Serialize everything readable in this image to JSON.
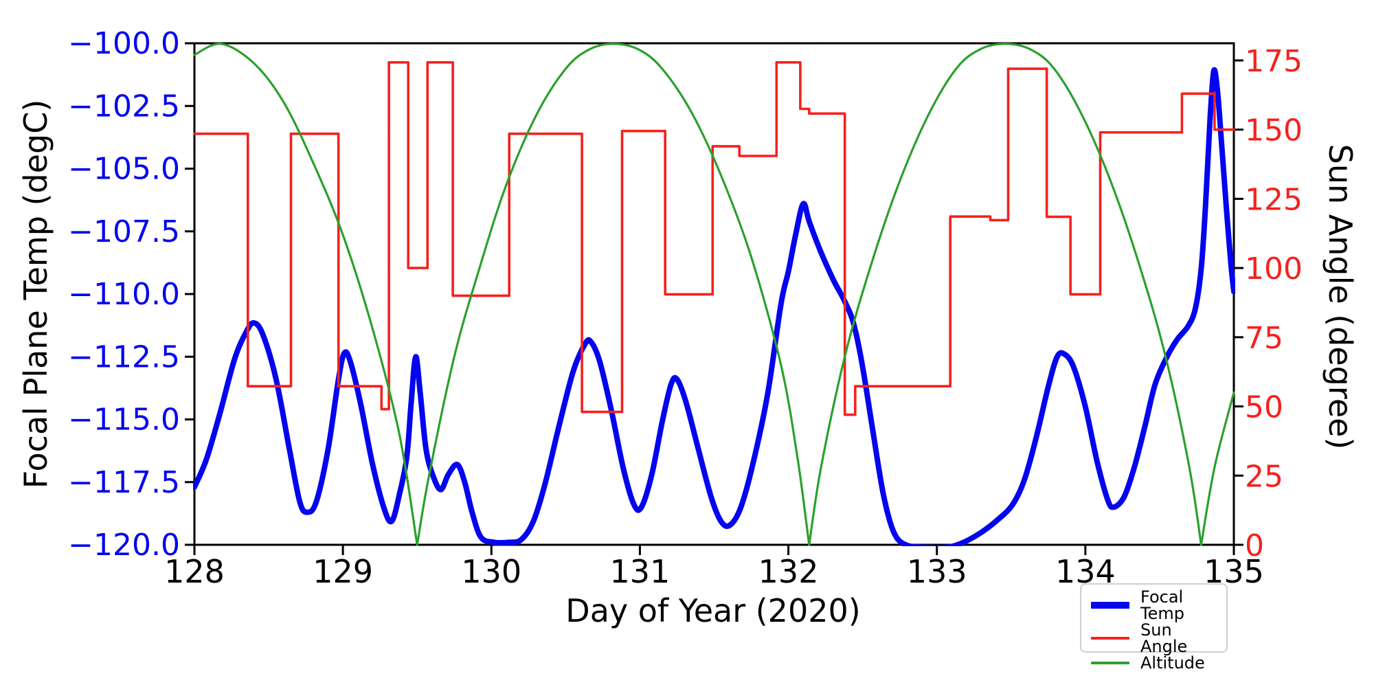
{
  "chart_data": {
    "type": "line",
    "title": "",
    "xlabel": "Day of Year (2020)",
    "ylabel_left": "Focal Plane Temp (degC)",
    "ylabel_right": "Sun Angle (degree)",
    "x_range": [
      128,
      135
    ],
    "left_axis": {
      "range": [
        -120.0,
        -100.0
      ],
      "tick_color": "#0404ee",
      "ticks": [
        {
          "v": -100.0,
          "label": "−100.0"
        },
        {
          "v": -102.5,
          "label": "−102.5"
        },
        {
          "v": -105.0,
          "label": "−105.0"
        },
        {
          "v": -107.5,
          "label": "−107.5"
        },
        {
          "v": -110.0,
          "label": "−110.0"
        },
        {
          "v": -112.5,
          "label": "−112.5"
        },
        {
          "v": -115.0,
          "label": "−115.0"
        },
        {
          "v": -117.5,
          "label": "−117.5"
        },
        {
          "v": -120.0,
          "label": "−120.0"
        }
      ]
    },
    "right_axis": {
      "range": [
        0,
        181.2
      ],
      "tick_color": "#f5211d",
      "ticks": [
        {
          "v": 175,
          "label": "175"
        },
        {
          "v": 150,
          "label": "150"
        },
        {
          "v": 125,
          "label": "125"
        },
        {
          "v": 100,
          "label": "100"
        },
        {
          "v": 75,
          "label": "75"
        },
        {
          "v": 50,
          "label": "50"
        },
        {
          "v": 25,
          "label": "25"
        },
        {
          "v": 0,
          "label": "0"
        }
      ]
    },
    "x_ticks": [
      {
        "v": 128,
        "label": "128"
      },
      {
        "v": 129,
        "label": "129"
      },
      {
        "v": 130,
        "label": "130"
      },
      {
        "v": 131,
        "label": "131"
      },
      {
        "v": 132,
        "label": "132"
      },
      {
        "v": 133,
        "label": "133"
      },
      {
        "v": 134,
        "label": "134"
      },
      {
        "v": 135,
        "label": "135"
      }
    ],
    "series": [
      {
        "name": "Focal Temp",
        "axis": "left",
        "color": "#0404ee",
        "linewidth": 8,
        "style": "smooth",
        "points": [
          [
            128.0,
            -117.7
          ],
          [
            128.08,
            -116.6
          ],
          [
            128.17,
            -114.8
          ],
          [
            128.27,
            -112.6
          ],
          [
            128.35,
            -111.5
          ],
          [
            128.4,
            -111.15
          ],
          [
            128.46,
            -111.6
          ],
          [
            128.55,
            -113.4
          ],
          [
            128.64,
            -116.2
          ],
          [
            128.71,
            -118.3
          ],
          [
            128.76,
            -118.7
          ],
          [
            128.82,
            -118.3
          ],
          [
            128.9,
            -116.2
          ],
          [
            128.97,
            -113.4
          ],
          [
            129.01,
            -112.35
          ],
          [
            129.05,
            -112.7
          ],
          [
            129.12,
            -114.4
          ],
          [
            129.2,
            -116.8
          ],
          [
            129.28,
            -118.6
          ],
          [
            129.33,
            -119.05
          ],
          [
            129.38,
            -118.0
          ],
          [
            129.43,
            -116.5
          ],
          [
            129.46,
            -114.3
          ],
          [
            129.49,
            -112.5
          ],
          [
            129.52,
            -113.9
          ],
          [
            129.56,
            -116.2
          ],
          [
            129.61,
            -117.3
          ],
          [
            129.66,
            -117.8
          ],
          [
            129.71,
            -117.2
          ],
          [
            129.77,
            -116.8
          ],
          [
            129.82,
            -117.5
          ],
          [
            129.87,
            -118.7
          ],
          [
            129.93,
            -119.7
          ],
          [
            130.02,
            -119.9
          ],
          [
            130.12,
            -119.9
          ],
          [
            130.2,
            -119.8
          ],
          [
            130.28,
            -119.1
          ],
          [
            130.36,
            -117.6
          ],
          [
            130.45,
            -115.4
          ],
          [
            130.55,
            -113.1
          ],
          [
            130.63,
            -112.0
          ],
          [
            130.67,
            -111.9
          ],
          [
            130.73,
            -112.7
          ],
          [
            130.81,
            -114.7
          ],
          [
            130.89,
            -117.0
          ],
          [
            130.96,
            -118.4
          ],
          [
            131.01,
            -118.5
          ],
          [
            131.08,
            -117.2
          ],
          [
            131.15,
            -115.1
          ],
          [
            131.21,
            -113.6
          ],
          [
            131.25,
            -113.4
          ],
          [
            131.31,
            -114.3
          ],
          [
            131.39,
            -116.1
          ],
          [
            131.48,
            -118.1
          ],
          [
            131.55,
            -119.1
          ],
          [
            131.61,
            -119.2
          ],
          [
            131.68,
            -118.5
          ],
          [
            131.76,
            -116.8
          ],
          [
            131.86,
            -114.0
          ],
          [
            131.95,
            -110.4
          ],
          [
            132.0,
            -109.1
          ],
          [
            132.05,
            -107.6
          ],
          [
            132.1,
            -106.4
          ],
          [
            132.14,
            -107.1
          ],
          [
            132.21,
            -108.2
          ],
          [
            132.3,
            -109.4
          ],
          [
            132.38,
            -110.3
          ],
          [
            132.44,
            -111.2
          ],
          [
            132.5,
            -112.9
          ],
          [
            132.57,
            -115.5
          ],
          [
            132.64,
            -118.0
          ],
          [
            132.71,
            -119.5
          ],
          [
            132.79,
            -120.0
          ],
          [
            132.92,
            -120.1
          ],
          [
            133.07,
            -120.1
          ],
          [
            133.18,
            -119.9
          ],
          [
            133.3,
            -119.5
          ],
          [
            133.41,
            -119.0
          ],
          [
            133.51,
            -118.4
          ],
          [
            133.59,
            -117.4
          ],
          [
            133.67,
            -115.7
          ],
          [
            133.75,
            -113.7
          ],
          [
            133.81,
            -112.5
          ],
          [
            133.86,
            -112.4
          ],
          [
            133.92,
            -112.9
          ],
          [
            134.0,
            -114.5
          ],
          [
            134.08,
            -116.7
          ],
          [
            134.15,
            -118.2
          ],
          [
            134.19,
            -118.5
          ],
          [
            134.26,
            -118.1
          ],
          [
            134.33,
            -116.9
          ],
          [
            134.4,
            -115.3
          ],
          [
            134.47,
            -113.6
          ],
          [
            134.55,
            -112.5
          ],
          [
            134.62,
            -111.8
          ],
          [
            134.69,
            -111.3
          ],
          [
            134.74,
            -110.6
          ],
          [
            134.78,
            -109.0
          ],
          [
            134.81,
            -106.4
          ],
          [
            134.84,
            -103.0
          ],
          [
            134.865,
            -101.1
          ],
          [
            134.89,
            -101.9
          ],
          [
            134.92,
            -104.2
          ],
          [
            134.95,
            -106.6
          ],
          [
            134.98,
            -108.8
          ],
          [
            135.0,
            -109.9
          ]
        ]
      },
      {
        "name": "Sun Angle",
        "axis": "right",
        "color": "#f5211d",
        "linewidth": 3.6,
        "style": "step",
        "segments": [
          [
            128.0,
            128.36,
            148.5
          ],
          [
            128.36,
            128.65,
            57.3
          ],
          [
            128.65,
            128.97,
            148.5
          ],
          [
            128.97,
            129.26,
            57.3
          ],
          [
            129.26,
            129.31,
            49.0
          ],
          [
            129.31,
            129.44,
            174.3
          ],
          [
            129.44,
            129.57,
            100.0
          ],
          [
            129.57,
            129.74,
            174.3
          ],
          [
            129.74,
            130.12,
            90.0
          ],
          [
            130.12,
            130.61,
            148.5
          ],
          [
            130.61,
            130.88,
            48.0
          ],
          [
            130.88,
            131.17,
            149.5
          ],
          [
            131.17,
            131.49,
            90.5
          ],
          [
            131.49,
            131.67,
            144.0
          ],
          [
            131.67,
            131.92,
            140.5
          ],
          [
            131.92,
            132.08,
            174.3
          ],
          [
            132.08,
            132.14,
            157.5
          ],
          [
            132.14,
            132.38,
            155.8
          ],
          [
            132.38,
            132.45,
            47.0
          ],
          [
            132.45,
            133.09,
            57.3
          ],
          [
            133.09,
            133.36,
            118.6
          ],
          [
            133.36,
            133.48,
            117.3
          ],
          [
            133.48,
            133.74,
            172.0
          ],
          [
            133.74,
            133.9,
            118.5
          ],
          [
            133.9,
            134.1,
            90.5
          ],
          [
            134.1,
            134.65,
            149.0
          ],
          [
            134.65,
            134.87,
            163.0
          ],
          [
            134.87,
            135.0,
            150.0
          ]
        ]
      },
      {
        "name": "Altitude",
        "axis": "right",
        "color": "#2ca02c",
        "linewidth": 3.2,
        "style": "smooth-arcs",
        "model": {
          "kind": "abs_sine_arches",
          "amplitude": 181,
          "zeros": [
            129.5,
            132.14,
            134.78
          ]
        },
        "points": [
          [
            128.0,
            177
          ],
          [
            128.18,
            181
          ],
          [
            128.4,
            174
          ],
          [
            128.6,
            160
          ],
          [
            128.8,
            138
          ],
          [
            129.0,
            112
          ],
          [
            129.2,
            78
          ],
          [
            129.38,
            40
          ],
          [
            129.5,
            0
          ],
          [
            129.58,
            25
          ],
          [
            129.75,
            68
          ],
          [
            129.92,
            100
          ],
          [
            130.1,
            130
          ],
          [
            130.3,
            155
          ],
          [
            130.5,
            172
          ],
          [
            130.66,
            179
          ],
          [
            130.82,
            181
          ],
          [
            130.99,
            179
          ],
          [
            131.15,
            172
          ],
          [
            131.35,
            156
          ],
          [
            131.55,
            133
          ],
          [
            131.75,
            104
          ],
          [
            131.95,
            65
          ],
          [
            132.06,
            32
          ],
          [
            132.14,
            0
          ],
          [
            132.22,
            28
          ],
          [
            132.38,
            68
          ],
          [
            132.55,
            100
          ],
          [
            132.74,
            130
          ],
          [
            132.94,
            155
          ],
          [
            133.13,
            172
          ],
          [
            133.29,
            179
          ],
          [
            133.46,
            181
          ],
          [
            133.63,
            179
          ],
          [
            133.79,
            172
          ],
          [
            133.98,
            155
          ],
          [
            134.18,
            130
          ],
          [
            134.37,
            100
          ],
          [
            134.54,
            68
          ],
          [
            134.7,
            28
          ],
          [
            134.78,
            0
          ],
          [
            134.87,
            28
          ],
          [
            135.0,
            55
          ]
        ]
      }
    ],
    "legend": {
      "position": "lower right",
      "border_color": "#cfcfcf",
      "entries": [
        {
          "label": "Focal Temp",
          "color": "#0404ee",
          "thickness": 10
        },
        {
          "label": "Sun Angle",
          "color": "#f5211d",
          "thickness": 4
        },
        {
          "label": "Altitude",
          "color": "#2ca02c",
          "thickness": 4
        }
      ]
    },
    "axis_color": "#000000",
    "background": "#ffffff"
  }
}
